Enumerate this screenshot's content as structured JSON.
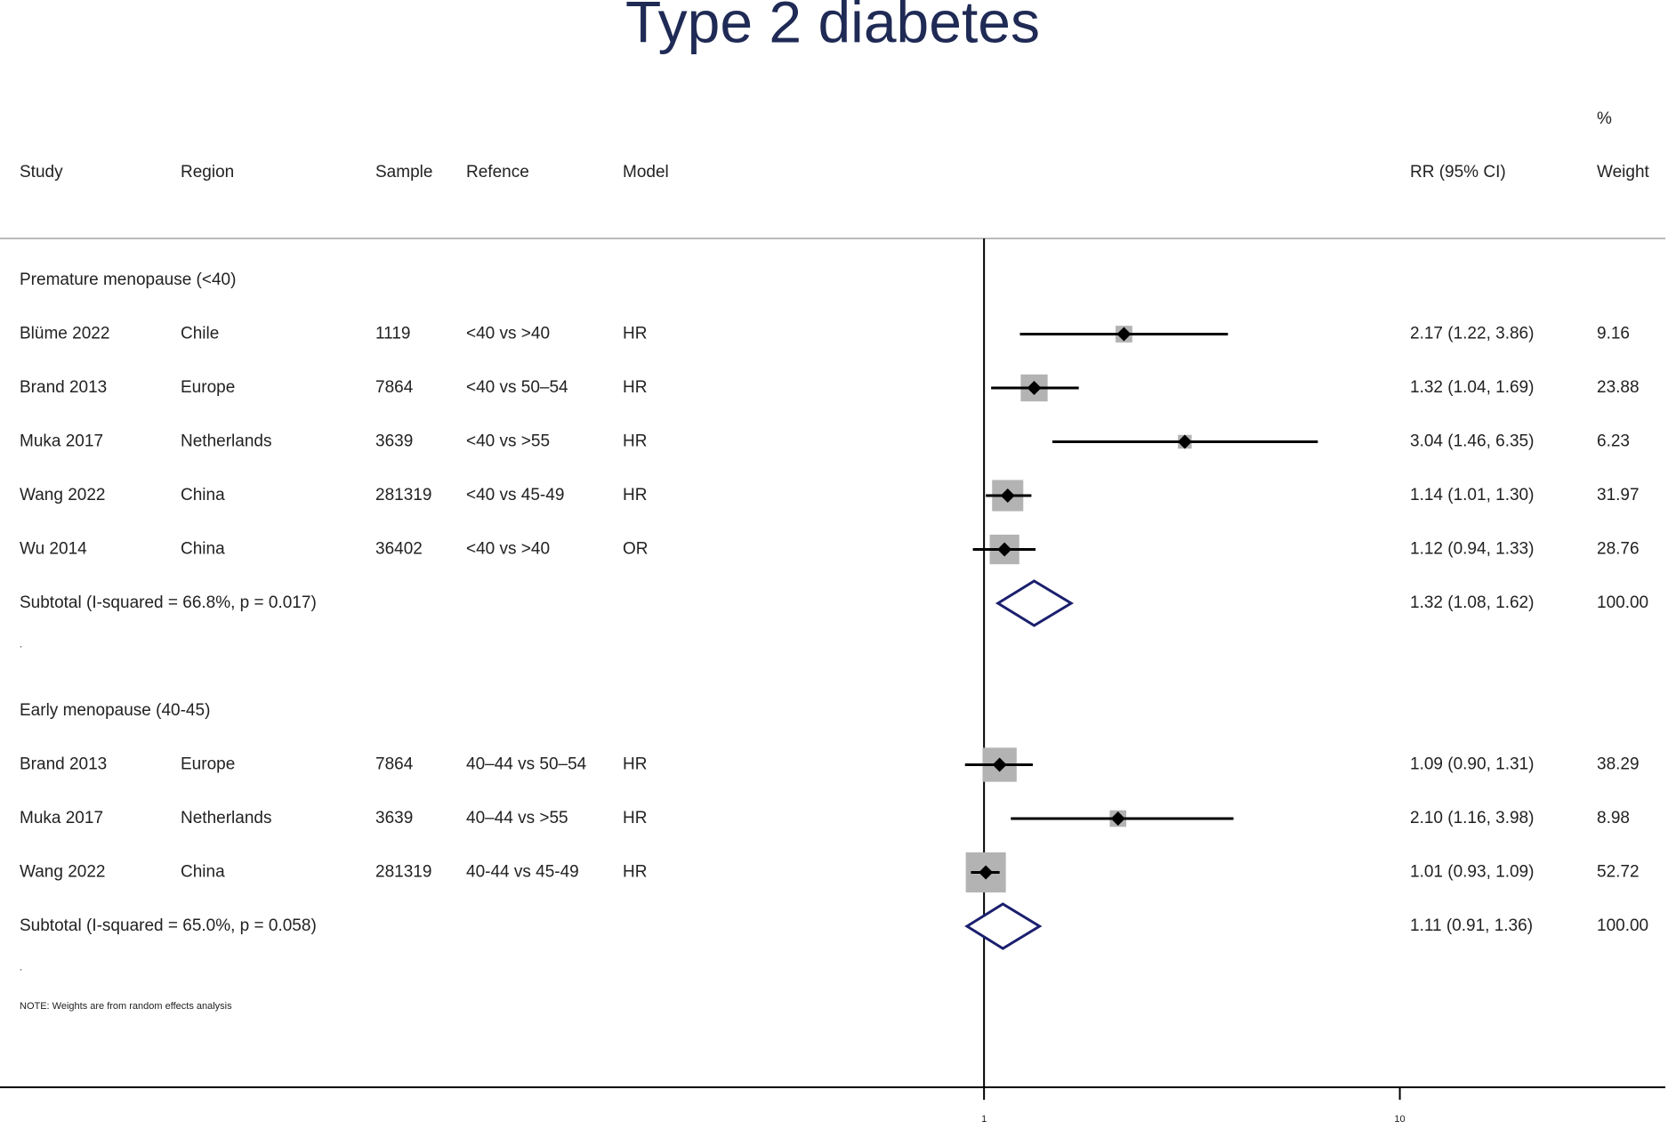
{
  "chart_data": {
    "type": "forest",
    "title": "Type 2 diabetes",
    "columns": {
      "study": "Study",
      "region": "Region",
      "sample": "Sample",
      "reference": "Refence",
      "model": "Model",
      "rr": "RR (95% CI)",
      "weight_top": "%",
      "weight": "Weight"
    },
    "groups": [
      {
        "label": "Premature menopause (<40)",
        "rows": [
          {
            "study": "Blüme 2022",
            "region": "Chile",
            "sample": 1119,
            "reference": "<40 vs >40",
            "model": "HR",
            "rr": 2.17,
            "lower": 1.22,
            "upper": 3.86,
            "rr_label": "2.17 (1.22, 3.86)",
            "weight": 9.16
          },
          {
            "study": "Brand 2013",
            "region": "Europe",
            "sample": 7864,
            "reference": "<40 vs 50–54",
            "model": "HR",
            "rr": 1.32,
            "lower": 1.04,
            "upper": 1.69,
            "rr_label": "1.32 (1.04, 1.69)",
            "weight": 23.88
          },
          {
            "study": "Muka 2017",
            "region": "Netherlands",
            "sample": 3639,
            "reference": "<40 vs >55",
            "model": "HR",
            "rr": 3.04,
            "lower": 1.46,
            "upper": 6.35,
            "rr_label": "3.04 (1.46, 6.35)",
            "weight": 6.23
          },
          {
            "study": "Wang 2022",
            "region": "China",
            "sample": 281319,
            "reference": "<40 vs 45-49",
            "model": "HR",
            "rr": 1.14,
            "lower": 1.01,
            "upper": 1.3,
            "rr_label": "1.14 (1.01, 1.30)",
            "weight": 31.97
          },
          {
            "study": "Wu 2014",
            "region": "China",
            "sample": 36402,
            "reference": "<40 vs >40",
            "model": "OR",
            "rr": 1.12,
            "lower": 0.94,
            "upper": 1.33,
            "rr_label": "1.12 (0.94, 1.33)",
            "weight": 28.76
          }
        ],
        "subtotal": {
          "label": "Subtotal  (I-squared = 66.8%, p = 0.017)",
          "rr": 1.32,
          "lower": 1.08,
          "upper": 1.62,
          "rr_label": "1.32 (1.08, 1.62)",
          "weight": 100,
          "weight_label": "100.00"
        },
        "end_mark": "."
      },
      {
        "label": "Early menopause (40-45)",
        "rows": [
          {
            "study": "Brand 2013",
            "region": "Europe",
            "sample": 7864,
            "reference": "40–44 vs 50–54",
            "model": "HR",
            "rr": 1.09,
            "lower": 0.9,
            "upper": 1.31,
            "rr_label": "1.09 (0.90, 1.31)",
            "weight": 38.29
          },
          {
            "study": "Muka 2017",
            "region": "Netherlands",
            "sample": 3639,
            "reference": "40–44 vs >55",
            "model": "HR",
            "rr": 2.1,
            "lower": 1.16,
            "upper": 3.98,
            "rr_label": "2.10 (1.16, 3.98)",
            "weight": 8.98
          },
          {
            "study": "Wang 2022",
            "region": "China",
            "sample": 281319,
            "reference": "40-44 vs 45-49",
            "model": "HR",
            "rr": 1.01,
            "lower": 0.93,
            "upper": 1.09,
            "rr_label": "1.01 (0.93, 1.09)",
            "weight": 52.72
          }
        ],
        "subtotal": {
          "label": "Subtotal  (I-squared = 65.0%, p = 0.058)",
          "rr": 1.11,
          "lower": 0.91,
          "upper": 1.36,
          "rr_label": "1.11 (0.91, 1.36)",
          "weight": 100,
          "weight_label": "100.00"
        },
        "end_mark": "."
      }
    ],
    "note": "NOTE: Weights are from random effects analysis",
    "xscale": "log",
    "xlim": [
      0.0043,
      43.5
    ],
    "xticks": [
      1,
      10
    ],
    "null_value": 1
  }
}
